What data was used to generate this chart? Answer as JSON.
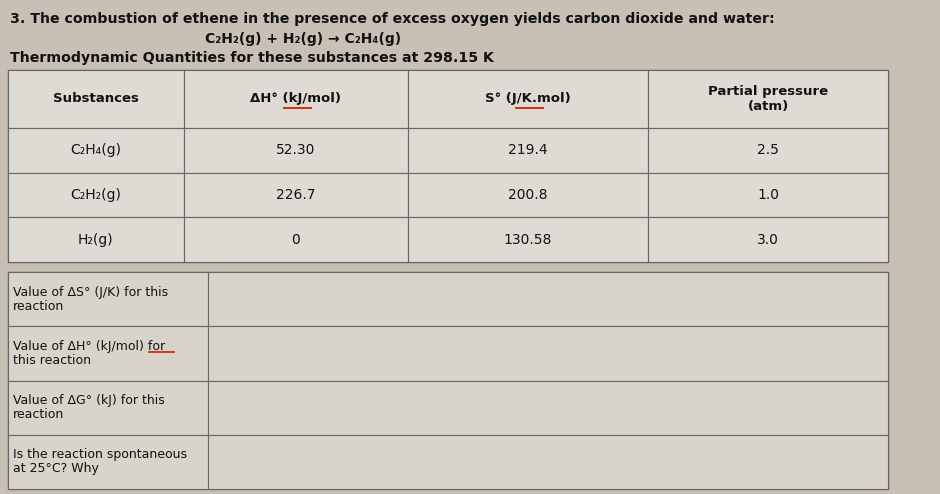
{
  "title_line1": "3. The combustion of ethene in the presence of excess oxygen yields carbon dioxide and water:",
  "title_line3": "Thermodynamic Quantities for these substances at 298.15 K",
  "table1_headers": [
    "Substances",
    "ΔH° (kJ/mol)",
    "S° (J/K.mol)",
    "Partial pressure\n(atm)"
  ],
  "table1_data": [
    [
      "C₂H₄(g)",
      "52.30",
      "219.4",
      "2.5"
    ],
    [
      "C₂H₂(g)",
      "226.7",
      "200.8",
      "1.0"
    ],
    [
      "H₂(g)",
      "0",
      "130.58",
      "3.0"
    ]
  ],
  "table2_rows": [
    [
      "Value of ΔS° (J/K) for this",
      "reaction"
    ],
    [
      "Value of ΔH° (kJ/mol) for",
      "this reaction"
    ],
    [
      "Value of ΔG° (kJ) for this",
      "reaction"
    ],
    [
      "Is the reaction spontaneous",
      "at 25°C? Why"
    ]
  ],
  "bg_color": "#c8c0b4",
  "table_bg": "#dedad4",
  "header_row_bg": "#ccc8c0",
  "answer_bg": "#d8d4cc",
  "text_color": "#111111",
  "border_color": "#666666",
  "underline_color": "#cc2200",
  "title_color": "#111111"
}
